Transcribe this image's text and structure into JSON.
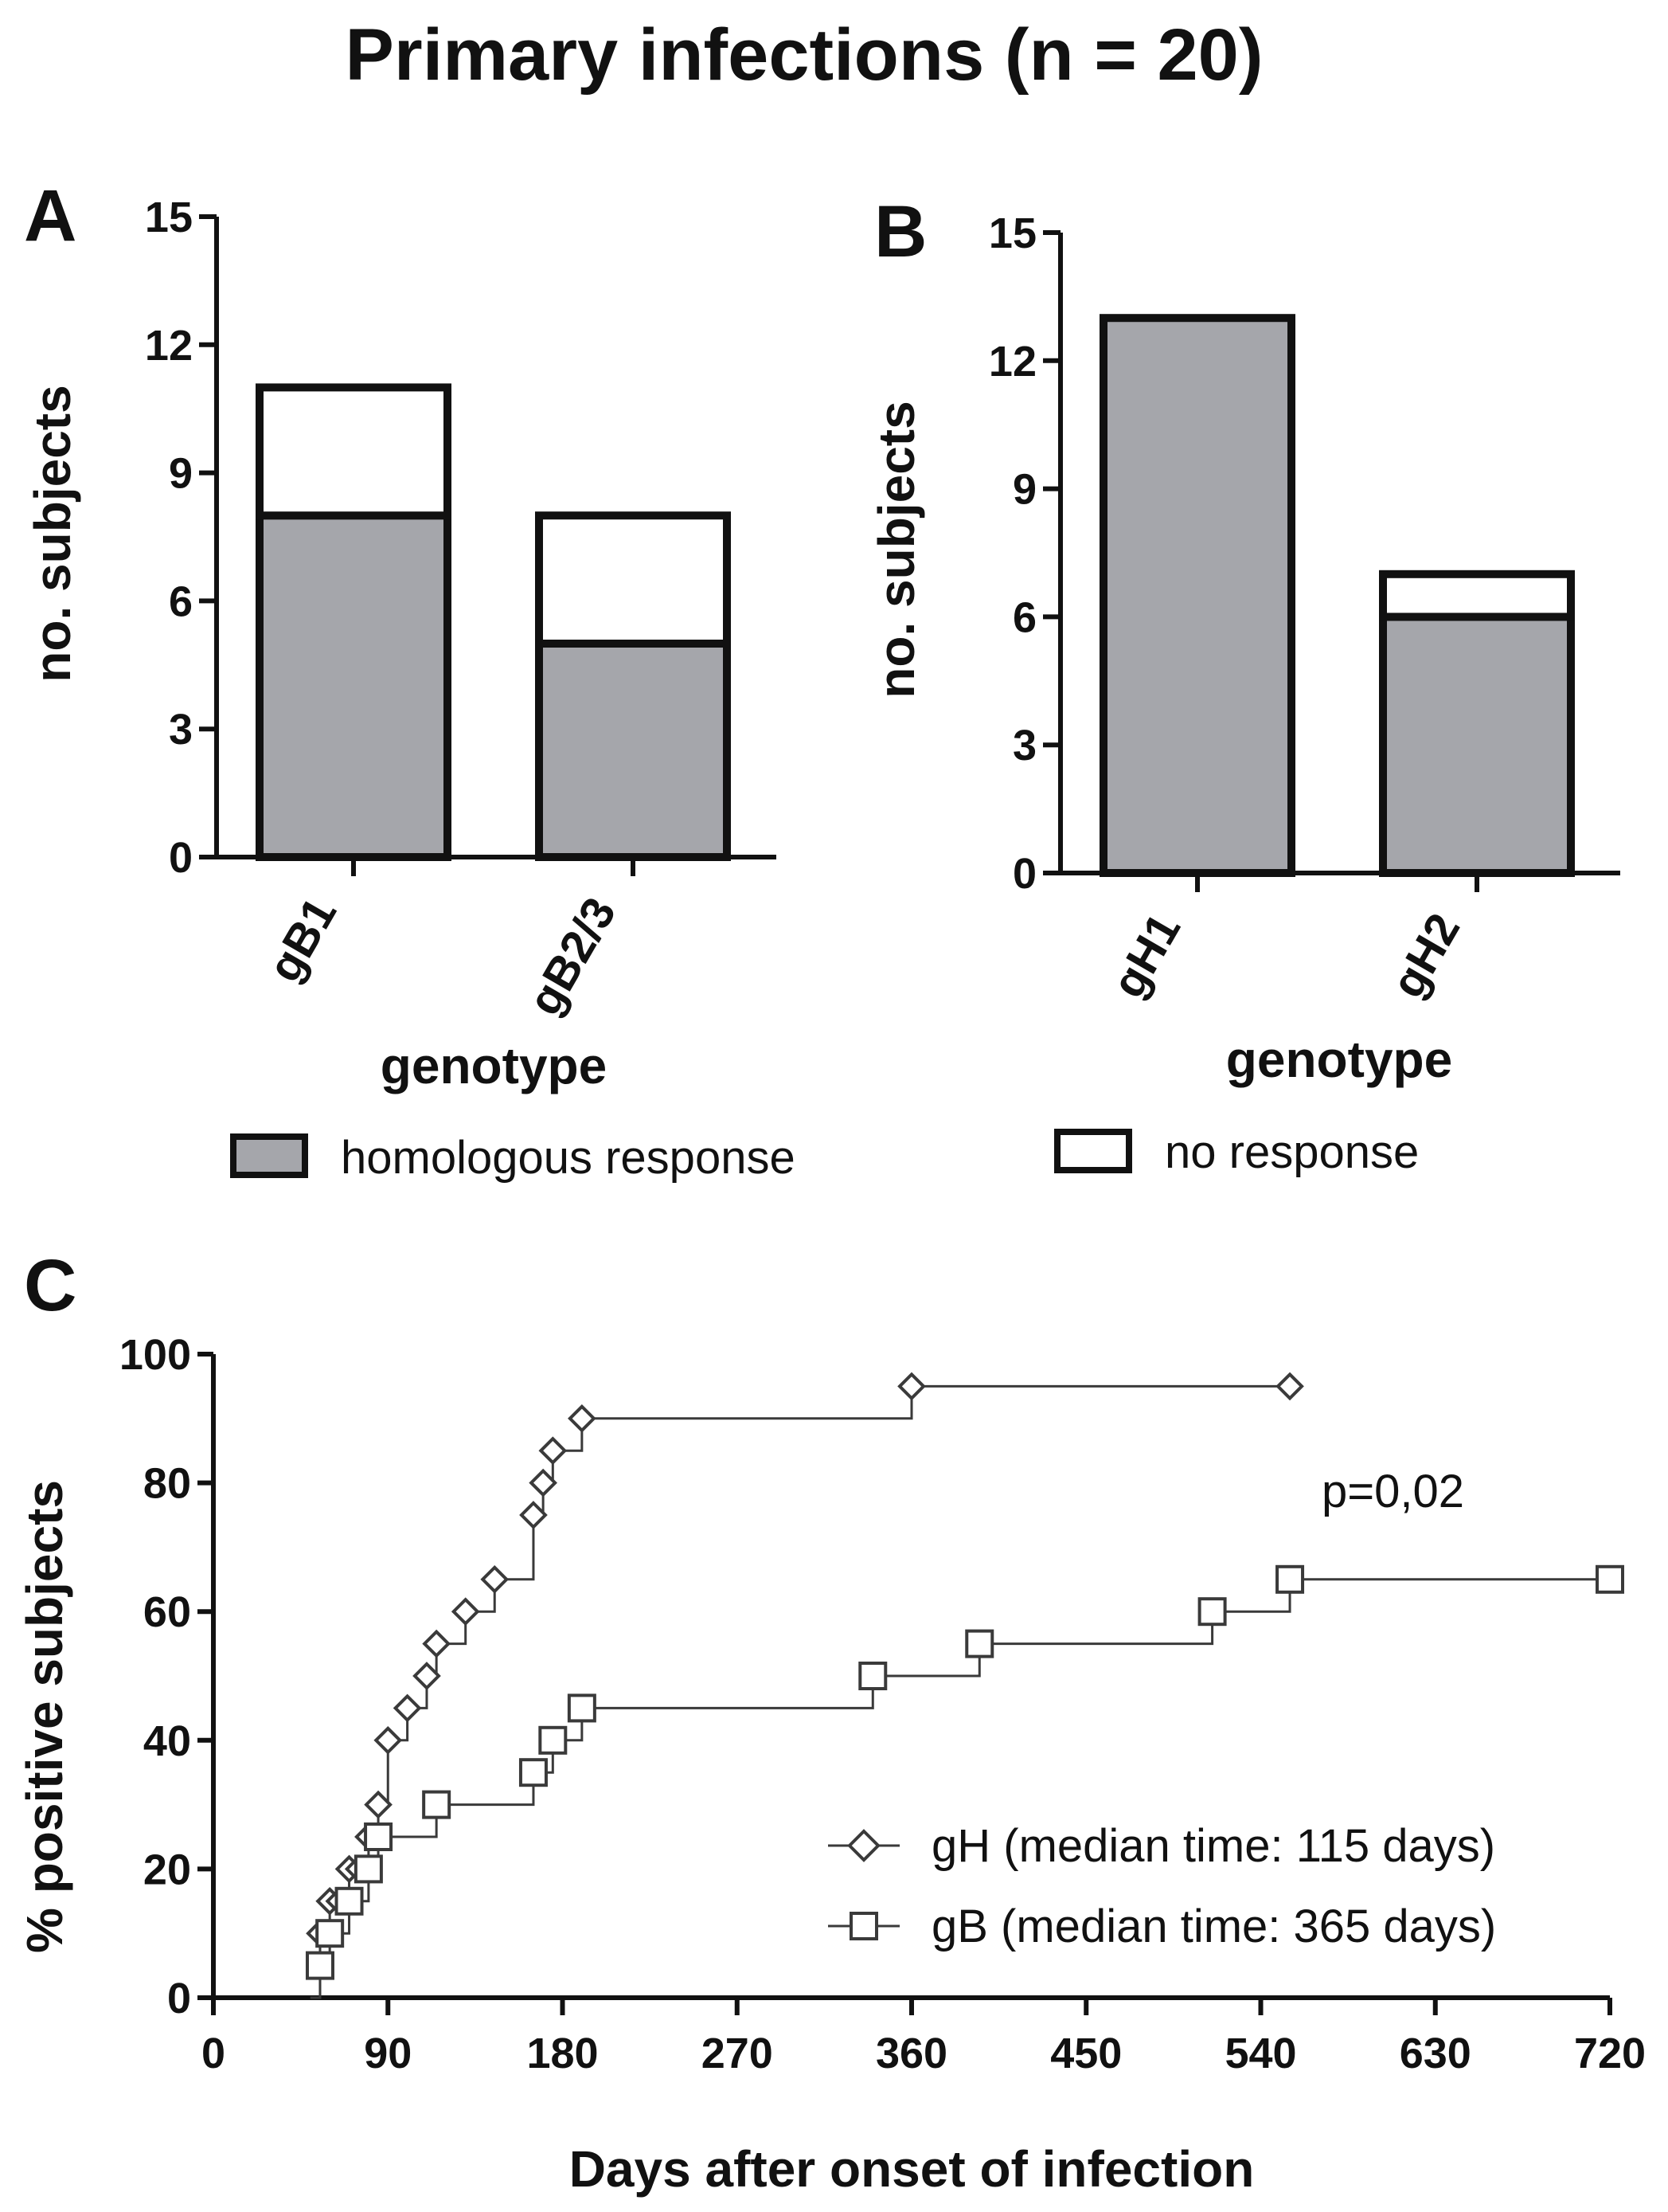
{
  "title": "Primary infections (n = 20)",
  "legend": {
    "bar_items": [
      {
        "label": "homologous response",
        "color": "#a5a6ab"
      },
      {
        "label": "no response",
        "color": "#ffffff"
      }
    ],
    "km_items": [
      {
        "label": "gH (median time: 115 days)",
        "marker": "diamond"
      },
      {
        "label": "gB (median time: 365 days)",
        "marker": "square"
      }
    ]
  },
  "colors": {
    "response": "#a5a6ab",
    "no_response": "#ffffff",
    "line": "#3a3a3a",
    "ink": "#111111"
  },
  "chart_data": [
    {
      "panel": "A",
      "type": "bar",
      "stacked": true,
      "categories": [
        "gB1",
        "gB2/3"
      ],
      "series": [
        {
          "name": "homologous response",
          "values": [
            8,
            5
          ]
        },
        {
          "name": "no response",
          "values": [
            3,
            3
          ]
        }
      ],
      "xlabel": "genotype",
      "ylabel": "no. subjects",
      "ylim": [
        0,
        15
      ],
      "yticks": [
        0,
        3,
        6,
        9,
        12,
        15
      ]
    },
    {
      "panel": "B",
      "type": "bar",
      "stacked": true,
      "categories": [
        "gH1",
        "gH2"
      ],
      "series": [
        {
          "name": "homologous response",
          "values": [
            13,
            6
          ]
        },
        {
          "name": "no response",
          "values": [
            0,
            1
          ]
        }
      ],
      "xlabel": "genotype",
      "ylabel": "no. subjects",
      "ylim": [
        0,
        15
      ],
      "yticks": [
        0,
        3,
        6,
        9,
        12,
        15
      ]
    },
    {
      "panel": "C",
      "type": "line",
      "step": true,
      "series": [
        {
          "name": "gH (median time: 115 days)",
          "marker": "diamond",
          "x": [
            50,
            55,
            60,
            65,
            70,
            75,
            80,
            85,
            90,
            100,
            110,
            115,
            130,
            145,
            165,
            170,
            175,
            190,
            360,
            555
          ],
          "y": [
            0,
            10,
            15,
            15,
            20,
            20,
            25,
            30,
            40,
            45,
            50,
            55,
            60,
            65,
            75,
            80,
            85,
            90,
            95,
            95
          ]
        },
        {
          "name": "gB (median time: 365 days)",
          "marker": "square",
          "x": [
            50,
            55,
            60,
            70,
            80,
            85,
            115,
            165,
            175,
            190,
            340,
            395,
            515,
            555,
            720
          ],
          "y": [
            0,
            5,
            10,
            15,
            20,
            25,
            30,
            35,
            40,
            45,
            50,
            55,
            60,
            65,
            65
          ]
        }
      ],
      "xlabel": "Days after onset of infection",
      "ylabel": "% positive subjects",
      "xlim": [
        0,
        720
      ],
      "ylim": [
        0,
        100
      ],
      "xticks": [
        0,
        90,
        180,
        270,
        360,
        450,
        540,
        630,
        720
      ],
      "yticks": [
        0,
        20,
        40,
        60,
        80,
        100
      ],
      "annotation": "p=0,02"
    }
  ]
}
